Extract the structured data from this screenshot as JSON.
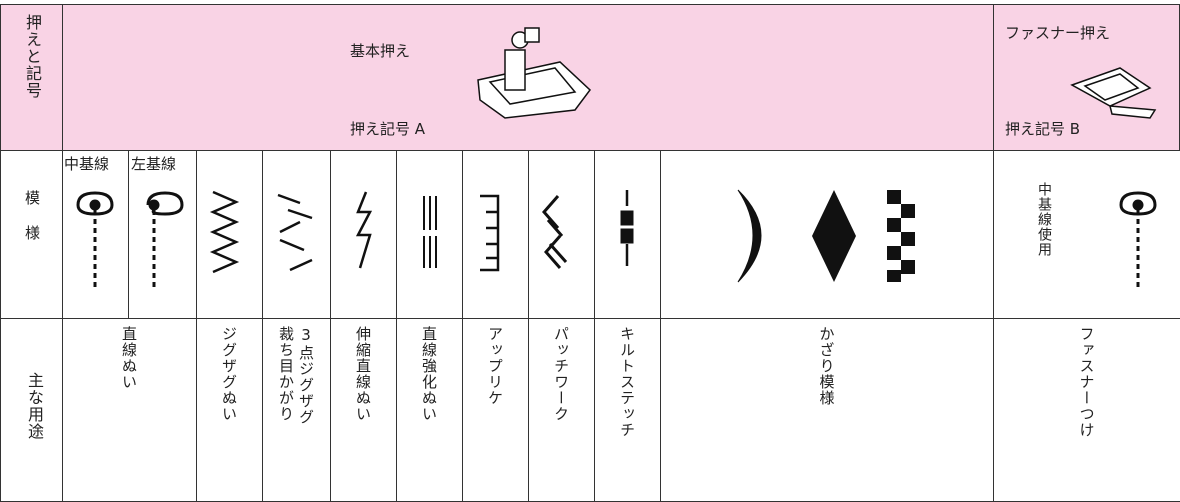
{
  "header": {
    "label": "押えと記号",
    "basic": {
      "title": "基本押え",
      "symbol": "押え記号 A"
    },
    "zipper": {
      "title": "ファスナー押え",
      "symbol": "押え記号 B"
    }
  },
  "patterns": {
    "label": "模様",
    "center_line": "中基線",
    "left_line": "左基線",
    "zipper_note": "中基線使用"
  },
  "usage": {
    "label": "主な用途",
    "items": [
      [
        "直線ぬい"
      ],
      [
        "ジグザグぬい"
      ],
      [
        "3点ジグザグ",
        "裁ち目かがり"
      ],
      [
        "伸縮直線ぬい"
      ],
      [
        "直線強化ぬい"
      ],
      [
        "アップリケ"
      ],
      [
        "パッチワーク"
      ],
      [
        "キルトステッチ"
      ],
      [
        "かざり模様"
      ],
      [
        "ファスナーつけ"
      ]
    ]
  }
}
